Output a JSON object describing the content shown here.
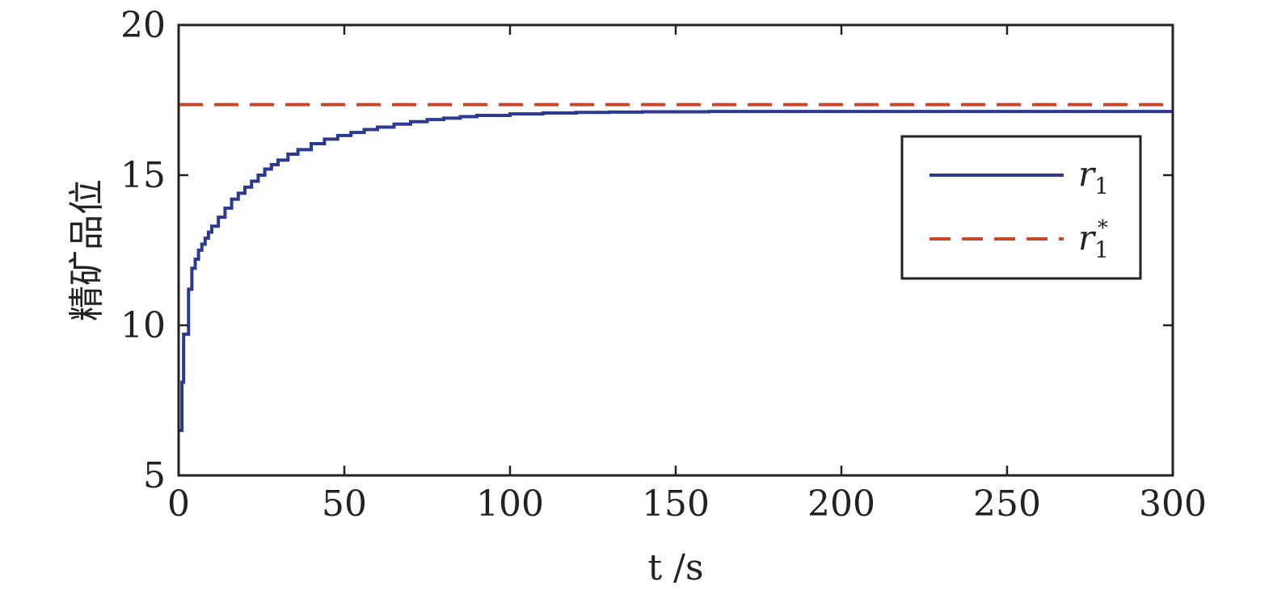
{
  "chart_data": {
    "type": "line",
    "title": "",
    "xlabel": "t /s",
    "ylabel": "精矿品位",
    "xlim": [
      0,
      300
    ],
    "ylim": [
      5,
      20
    ],
    "x_ticks": [
      0,
      50,
      100,
      150,
      200,
      250,
      300
    ],
    "y_ticks": [
      5,
      10,
      15,
      20
    ],
    "grid": false,
    "legend": {
      "placement": "right",
      "entries": [
        "r1",
        "r1*"
      ]
    },
    "series": [
      {
        "name": "r1",
        "color": "#2b3990",
        "style": "step-solid",
        "x": [
          0,
          0.5,
          1,
          1.5,
          2,
          3,
          4,
          5,
          6,
          7,
          8,
          9,
          10,
          12,
          14,
          16,
          18,
          20,
          22,
          24,
          26,
          28,
          30,
          33,
          36,
          40,
          44,
          48,
          52,
          56,
          60,
          65,
          70,
          75,
          80,
          85,
          90,
          100,
          110,
          120,
          130,
          140,
          160,
          180,
          200,
          250,
          300
        ],
        "values": [
          6.5,
          6.5,
          8.1,
          9.7,
          9.7,
          11.2,
          11.9,
          12.2,
          12.5,
          12.7,
          12.9,
          13.1,
          13.3,
          13.6,
          13.9,
          14.2,
          14.4,
          14.6,
          14.8,
          15.0,
          15.2,
          15.35,
          15.5,
          15.7,
          15.85,
          16.05,
          16.2,
          16.32,
          16.42,
          16.52,
          16.6,
          16.7,
          16.78,
          16.85,
          16.9,
          16.95,
          16.99,
          17.04,
          17.07,
          17.09,
          17.1,
          17.11,
          17.12,
          17.12,
          17.12,
          17.12,
          17.12
        ]
      },
      {
        "name": "r1*",
        "color": "#c8472a",
        "style": "dashed",
        "x": [
          0,
          300
        ],
        "values": [
          17.35,
          17.35
        ]
      }
    ]
  }
}
